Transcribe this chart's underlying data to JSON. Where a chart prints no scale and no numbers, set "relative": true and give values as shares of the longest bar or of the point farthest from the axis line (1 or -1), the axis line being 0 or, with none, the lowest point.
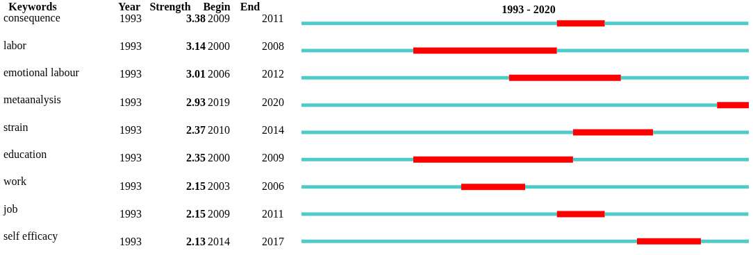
{
  "chart_data": {
    "type": "bar",
    "orientation": "horizontal",
    "title": "1993 - 2020",
    "categories": [
      "consequence",
      "labor",
      "emotional labour",
      "metaanalysis",
      "strain",
      "education",
      "work",
      "job",
      "self efficacy"
    ],
    "stacked": true,
    "relative": true,
    "series": [
      {
        "color": "#4ecbc8",
        "values": [
          0.571,
          0.25,
          0.464,
          0.929,
          0.607,
          0.25,
          0.357,
          0.571,
          0.75
        ]
      },
      {
        "color": "#ff0000",
        "values": [
          0.107,
          0.321,
          0.25,
          0.071,
          0.179,
          0.357,
          0.143,
          0.107,
          0.143
        ]
      },
      {
        "color": "#4ecbc8",
        "values": [
          0.321,
          0.429,
          0.286,
          0,
          0.214,
          0.393,
          0.5,
          0.321,
          0.107
        ]
      }
    ],
    "tick_labels": "y",
    "annotations": [
      "Keywords",
      "Year",
      "Strength",
      "Begin",
      "End",
      "1993",
      "3.38",
      "2009",
      "2011",
      "1993",
      "3.14",
      "2000",
      "2008",
      "1993",
      "3.01",
      "2006",
      "2012",
      "1993",
      "2.93",
      "2019",
      "2020",
      "1993",
      "2.37",
      "2010",
      "2014",
      "1993",
      "2.35",
      "2000",
      "2009",
      "1993",
      "2.15",
      "2003",
      "2006",
      "1993",
      "2.15",
      "2009",
      "2011",
      "1993",
      "2.13",
      "2014",
      "2017"
    ]
  }
}
